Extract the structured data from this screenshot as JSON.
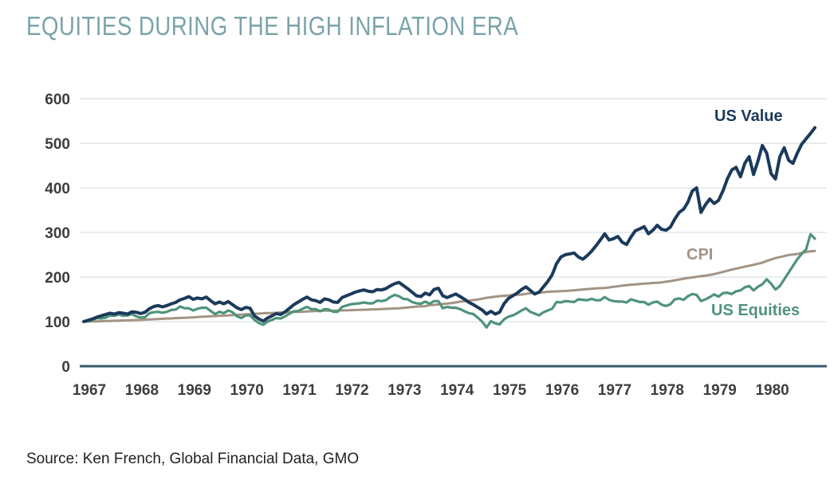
{
  "page": {
    "title": "EQUITIES DURING THE HIGH INFLATION ERA",
    "source": "Source: Ken French, Global Financial Data, GMO"
  },
  "chart_data": {
    "type": "line",
    "title": "EQUITIES DURING THE HIGH INFLATION ERA",
    "xlabel": "",
    "ylabel": "",
    "x_start_year": 1967,
    "x_end_year": 1980,
    "frequency": "monthly",
    "index_base": "1967 = 100",
    "x_tick_labels": [
      "1967",
      "1968",
      "1969",
      "1970",
      "1971",
      "1972",
      "1973",
      "1974",
      "1975",
      "1976",
      "1977",
      "1978",
      "1979",
      "1980"
    ],
    "y_ticks": [
      0,
      100,
      200,
      300,
      400,
      500,
      600
    ],
    "ylim": [
      0,
      600
    ],
    "grid": "horizontal",
    "legend_position": "inline-labels",
    "colors": {
      "us_value": "#1b3a5b",
      "cpi": "#a39384",
      "us_equities": "#4e937a",
      "gridline": "#dfe5e8",
      "zero_axis": "#34596a",
      "tick_text": "#3d3d3d",
      "title_text": "#7ba4a9"
    },
    "series": [
      {
        "name": "US Value",
        "color": "#1b3a5b",
        "stroke_width": 4,
        "values": [
          100,
          103,
          106,
          110,
          113,
          116,
          119,
          117,
          120,
          119,
          117,
          122,
          121,
          118,
          121,
          129,
          134,
          136,
          133,
          136,
          140,
          143,
          149,
          152,
          156,
          150,
          153,
          151,
          155,
          147,
          140,
          144,
          140,
          145,
          138,
          131,
          127,
          132,
          130,
          113,
          106,
          101,
          108,
          113,
          118,
          116,
          122,
          130,
          138,
          144,
          150,
          155,
          149,
          147,
          143,
          151,
          149,
          144,
          143,
          154,
          158,
          162,
          166,
          169,
          171,
          168,
          167,
          172,
          171,
          174,
          180,
          185,
          188,
          181,
          174,
          166,
          158,
          156,
          164,
          160,
          172,
          175,
          158,
          154,
          158,
          162,
          156,
          150,
          143,
          138,
          132,
          126,
          117,
          123,
          117,
          121,
          140,
          152,
          158,
          164,
          172,
          178,
          170,
          162,
          166,
          178,
          190,
          205,
          230,
          245,
          250,
          252,
          254,
          245,
          240,
          248,
          258,
          270,
          283,
          297,
          283,
          286,
          291,
          278,
          273,
          290,
          304,
          308,
          313,
          297,
          305,
          316,
          307,
          305,
          312,
          330,
          345,
          352,
          368,
          393,
          400,
          345,
          362,
          375,
          365,
          372,
          393,
          420,
          440,
          446,
          425,
          455,
          470,
          430,
          460,
          495,
          478,
          432,
          420,
          470,
          490,
          462,
          455,
          478,
          498,
          510,
          522,
          535
        ]
      },
      {
        "name": "CPI",
        "color": "#a39384",
        "stroke_width": 3,
        "values": [
          100.0,
          100.2,
          100.4,
          100.6,
          100.9,
          101.2,
          101.6,
          102.0,
          102.3,
          102.6,
          102.9,
          103.2,
          103.6,
          104.0,
          104.5,
          104.9,
          105.3,
          105.9,
          106.4,
          106.9,
          107.2,
          107.8,
          108.2,
          108.6,
          109.1,
          109.5,
          110.4,
          111.0,
          111.3,
          112.0,
          112.5,
          113.0,
          113.5,
          114.0,
          114.6,
          115.3,
          115.8,
          116.4,
          117.0,
          117.7,
          118.1,
          118.7,
          119.1,
          119.3,
          119.9,
          120.6,
          121.0,
          121.6,
          121.7,
          121.9,
          122.2,
          122.6,
          123.2,
          123.8,
          124.1,
          124.4,
          124.5,
          124.7,
          124.8,
          125.1,
          125.2,
          125.8,
          126.0,
          126.3,
          126.7,
          127.0,
          127.5,
          127.7,
          128.2,
          128.6,
          128.9,
          129.4,
          129.8,
          130.7,
          131.8,
          132.8,
          133.5,
          134.4,
          134.7,
          137.1,
          137.5,
          138.6,
          139.5,
          140.3,
          141.6,
          143.1,
          144.8,
          145.5,
          147.1,
          148.4,
          149.6,
          151.6,
          153.4,
          154.6,
          156.0,
          157.2,
          157.8,
          158.7,
          159.3,
          160.1,
          160.8,
          162.1,
          163.8,
          164.1,
          164.9,
          165.9,
          166.9,
          167.4,
          167.8,
          168.2,
          168.7,
          169.4,
          170.4,
          171.3,
          172.2,
          173.1,
          173.8,
          174.5,
          175.0,
          175.6,
          176.6,
          178.2,
          179.3,
          180.8,
          181.7,
          182.8,
          183.6,
          184.3,
          185.2,
          185.8,
          186.7,
          187.1,
          188.1,
          189.4,
          190.9,
          192.7,
          194.4,
          196.3,
          197.8,
          199.1,
          200.5,
          202.0,
          203.3,
          204.7,
          206.6,
          209.1,
          211.5,
          214.1,
          216.6,
          218.9,
          221.1,
          223.4,
          225.4,
          227.5,
          229.9,
          232.1,
          236.0,
          239.3,
          242.5,
          244.9,
          247.0,
          249.4,
          250.6,
          251.7,
          253.9,
          256.2,
          257.5,
          258.4
        ]
      },
      {
        "name": "US Equities",
        "color": "#4e937a",
        "stroke_width": 3.2,
        "values": [
          100,
          101,
          104,
          108,
          107,
          109,
          114,
          113,
          116,
          113,
          114,
          117,
          112,
          109,
          110,
          119,
          121,
          122,
          120,
          122,
          126,
          127,
          134,
          130,
          130,
          125,
          129,
          131,
          131,
          124,
          117,
          122,
          119,
          125,
          121,
          112,
          108,
          114,
          114,
          104,
          97,
          93,
          100,
          104,
          108,
          107,
          112,
          118,
          123,
          124,
          129,
          133,
          128,
          128,
          123,
          128,
          127,
          122,
          122,
          133,
          136,
          139,
          140,
          141,
          143,
          141,
          141,
          147,
          146,
          148,
          155,
          160,
          157,
          151,
          150,
          144,
          141,
          140,
          145,
          140,
          146,
          146,
          130,
          133,
          131,
          131,
          128,
          123,
          119,
          117,
          109,
          100,
          87,
          101,
          96,
          94,
          105,
          111,
          114,
          119,
          125,
          130,
          122,
          118,
          114,
          121,
          125,
          129,
          144,
          143,
          146,
          145,
          144,
          150,
          149,
          148,
          151,
          148,
          148,
          155,
          149,
          146,
          145,
          145,
          143,
          150,
          147,
          144,
          144,
          138,
          143,
          145,
          138,
          135,
          139,
          150,
          152,
          149,
          157,
          162,
          160,
          146,
          150,
          155,
          161,
          156,
          164,
          165,
          162,
          168,
          170,
          177,
          180,
          170,
          178,
          184,
          195,
          185,
          172,
          180,
          195,
          210,
          225,
          240,
          252,
          262,
          296,
          286
        ]
      }
    ]
  }
}
